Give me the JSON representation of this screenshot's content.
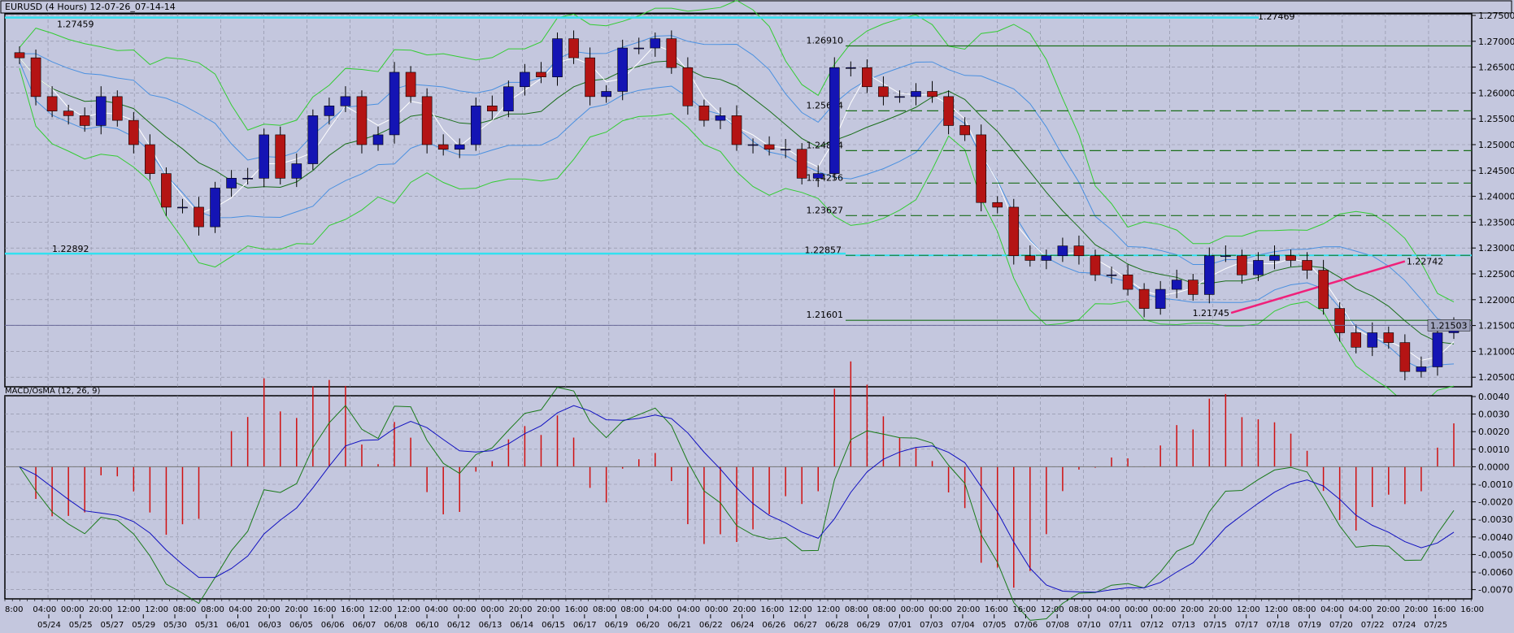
{
  "window": {
    "title": "EURUSD (4 Hours) 12-07-26_07-14-14"
  },
  "colors": {
    "background": "#c4c7de",
    "bull": "#1414b4",
    "bear": "#b41414",
    "grid": "#8a8ca0",
    "cyan_line": "#33e0f0",
    "level_line": "#1a6e1a",
    "trend_line": "#f0207a",
    "bb_outer": "#33cc33",
    "bb_mid": "#1a6e1a",
    "bb_inner": "#4a90e0",
    "fast_ma": "#ffffff",
    "macd_line": "#1a7a1a",
    "signal_line": "#1010c0",
    "osma_hist": "#d01010"
  },
  "chart_data": [
    {
      "type": "candlestick",
      "symbol": "EURUSD",
      "timeframe": "4 Hours",
      "ylim": [
        1.2025,
        1.2765
      ],
      "y_ticks": [
        "1.27500",
        "1.27000",
        "1.26500",
        "1.26000",
        "1.25500",
        "1.25000",
        "1.24500",
        "1.24000",
        "1.23500",
        "1.23000",
        "1.22500",
        "1.22000",
        "1.21500",
        "1.21000",
        "1.20500"
      ],
      "grid": true,
      "close": [
        1.2668,
        1.2593,
        1.2565,
        1.2556,
        1.2537,
        1.2593,
        1.2547,
        1.25,
        1.2444,
        1.2379,
        1.2379,
        1.2341,
        1.2416,
        1.2435,
        1.2435,
        1.2519,
        1.2435,
        1.2463,
        1.2556,
        1.2575,
        1.2593,
        1.25,
        1.2519,
        1.264,
        1.2593,
        1.25,
        1.2491,
        1.25,
        1.2575,
        1.2565,
        1.2612,
        1.264,
        1.2631,
        1.2705,
        1.2668,
        1.2593,
        1.2603,
        1.2687,
        1.2687,
        1.2705,
        1.2649,
        1.2575,
        1.2547,
        1.2556,
        1.25,
        1.25,
        1.2491,
        1.2491,
        1.2435,
        1.2444,
        1.2649,
        1.2649,
        1.2612,
        1.2593,
        1.2593,
        1.2603,
        1.2593,
        1.2537,
        1.2519,
        1.2388,
        1.2379,
        1.2285,
        1.2276,
        1.2285,
        1.2304,
        1.2285,
        1.2248,
        1.2248,
        1.222,
        1.2183,
        1.222,
        1.2238,
        1.221,
        1.2285,
        1.2285,
        1.2248,
        1.2276,
        1.2285,
        1.2276,
        1.2257,
        1.2183,
        1.2136,
        1.2108,
        1.2136,
        1.2117,
        1.2061,
        1.207,
        1.2136,
        1.215
      ],
      "current_price": "1.21503",
      "indicators": [
        "Bollinger Bands",
        "Moving Average"
      ],
      "horizontal_lines": [
        {
          "value": 1.27459,
          "label": "1.27459",
          "color": "cyan",
          "segment": "left"
        },
        {
          "value": 1.27469,
          "label": "1.27469",
          "color": "cyan",
          "segment": "right-end"
        },
        {
          "value": 1.22892,
          "label": "1.22892",
          "color": "cyan",
          "segment": "left"
        },
        {
          "value": 1.22857,
          "label": "1.22857",
          "color": "cyan",
          "segment": "right"
        },
        {
          "value": 1.2691,
          "label": "1.26910",
          "style": "solid"
        },
        {
          "value": 1.25654,
          "label": "1.25654",
          "style": "dashed"
        },
        {
          "value": 1.24884,
          "label": "1.24884",
          "style": "dashed"
        },
        {
          "value": 1.24256,
          "label": "1.24256",
          "style": "dashed"
        },
        {
          "value": 1.23627,
          "label": "1.23627",
          "style": "dashed"
        },
        {
          "value": 1.21601,
          "label": "1.21601",
          "style": "solid"
        }
      ],
      "trend_line": {
        "start": {
          "value": 1.21745,
          "label": "1.21745"
        },
        "end": {
          "value": 1.22742,
          "label": "1.22742"
        }
      }
    },
    {
      "type": "macd",
      "title": "MACD/OsMA (12, 26, 9)",
      "ylim": [
        -0.0072,
        0.0041
      ],
      "y_ticks": [
        "0.0040",
        "0.0030",
        "0.0020",
        "0.0010",
        "0.0000",
        "-0.0010",
        "-0.0020",
        "-0.0030",
        "-0.0040",
        "-0.0050",
        "-0.0060",
        "-0.0070"
      ],
      "series": [
        "MACD",
        "Signal",
        "OsMA"
      ]
    }
  ],
  "x_axis": {
    "times": [
      "8:00",
      "04:00",
      "00:00",
      "20:00",
      "12:00",
      "12:00",
      "08:00",
      "08:00",
      "04:00",
      "20:00",
      "20:00",
      "16:00",
      "16:00",
      "12:00",
      "12:00",
      "04:00",
      "00:00",
      "00:00",
      "20:00",
      "20:00",
      "16:00",
      "08:00",
      "08:00",
      "04:00",
      "04:00",
      "00:00",
      "20:00",
      "16:00",
      "12:00",
      "12:00",
      "08:00",
      "08:00",
      "00:00",
      "00:00",
      "20:00",
      "16:00",
      "16:00",
      "12:00",
      "08:00",
      "04:00",
      "00:00",
      "00:00",
      "20:00",
      "20:00",
      "12:00",
      "12:00",
      "08:00",
      "04:00",
      "04:00",
      "20:00",
      "20:00",
      "16:00",
      "16:00"
    ],
    "dates": [
      "05/24",
      "05/25",
      "05/27",
      "05/29",
      "05/30",
      "05/31",
      "06/01",
      "06/03",
      "06/05",
      "06/06",
      "06/07",
      "06/08",
      "06/10",
      "06/12",
      "06/13",
      "06/14",
      "06/15",
      "06/17",
      "06/19",
      "06/20",
      "06/21",
      "06/22",
      "06/24",
      "06/26",
      "06/27",
      "06/28",
      "06/29",
      "07/01",
      "07/03",
      "07/04",
      "07/05",
      "07/06",
      "07/08",
      "07/10",
      "07/11",
      "07/12",
      "07/13",
      "07/15",
      "07/17",
      "07/18",
      "07/19",
      "07/20",
      "07/22",
      "07/24",
      "07/25"
    ]
  }
}
